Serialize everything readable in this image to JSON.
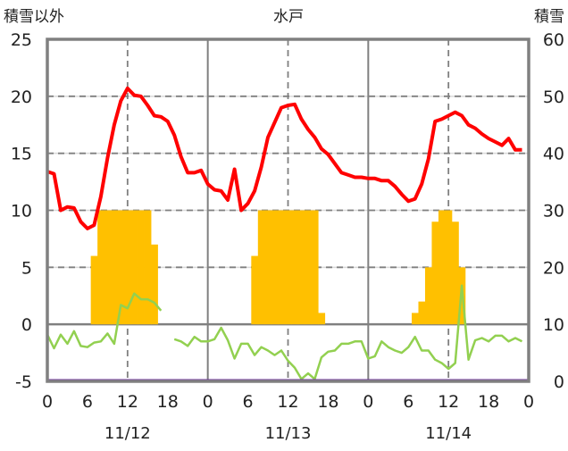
{
  "chart_data": {
    "type": "line",
    "title": "水戸",
    "left_axis_label": "積雪以外",
    "right_axis_label": "積雪",
    "left_ylim": [
      -5,
      25
    ],
    "left_ticks": [
      "25",
      "20",
      "15",
      "10",
      "5",
      "0",
      "-5"
    ],
    "left_tick_values": [
      25,
      20,
      15,
      10,
      5,
      0,
      -5
    ],
    "right_ylim": [
      0,
      60
    ],
    "right_ticks": [
      "60",
      "50",
      "40",
      "30",
      "20",
      "10",
      "0"
    ],
    "right_tick_values": [
      60,
      50,
      40,
      30,
      20,
      10,
      0
    ],
    "x_hours_range": [
      0,
      72
    ],
    "x_tick_labels": [
      "0",
      "6",
      "12",
      "18",
      "0",
      "6",
      "12",
      "18",
      "0",
      "6",
      "12",
      "18",
      "0"
    ],
    "x_tick_hours": [
      0,
      6,
      12,
      18,
      24,
      30,
      36,
      42,
      48,
      54,
      60,
      66,
      72
    ],
    "date_labels": [
      "11/12",
      "11/13",
      "11/14"
    ],
    "date_label_hours": [
      12,
      36,
      60
    ],
    "grid": true,
    "colors": {
      "red": "#ff0000",
      "green": "#92d050",
      "bar": "#ffc000",
      "purple": "#7030a0",
      "axis": "#808080"
    },
    "series": [
      {
        "name": "red-line",
        "axis": "left",
        "color": "#ff0000",
        "values": [
          13.4,
          13.2,
          10.0,
          10.3,
          10.2,
          9.0,
          8.4,
          8.7,
          11.2,
          14.6,
          17.5,
          19.6,
          20.7,
          20.1,
          20.0,
          19.2,
          18.3,
          18.2,
          17.8,
          16.6,
          14.7,
          13.3,
          13.3,
          13.5,
          12.3,
          11.8,
          11.7,
          10.9,
          13.6,
          10.0,
          10.6,
          11.7,
          13.8,
          16.4,
          17.7,
          19.0,
          19.2,
          19.3,
          18.0,
          17.1,
          16.4,
          15.4,
          14.9,
          14.1,
          13.3,
          13.1,
          12.9,
          12.9,
          12.8,
          12.8,
          12.6,
          12.6,
          12.1,
          11.4,
          10.8,
          11.0,
          12.3,
          14.5,
          17.8,
          18.0,
          18.3,
          18.6,
          18.3,
          17.5,
          17.2,
          16.7,
          16.3,
          16.0,
          15.7,
          16.3,
          15.3,
          15.3
        ]
      },
      {
        "name": "green-line",
        "axis": "left",
        "color": "#92d050",
        "values": [
          -0.9,
          -2.1,
          -0.9,
          -1.7,
          -0.6,
          -1.9,
          -2.0,
          -1.6,
          -1.5,
          -0.8,
          -1.7,
          1.7,
          1.4,
          2.7,
          2.2,
          2.2,
          1.9,
          1.2,
          null,
          -1.3,
          -1.5,
          -1.9,
          -1.1,
          -1.5,
          -1.5,
          -1.3,
          -0.3,
          -1.4,
          -3.0,
          -1.7,
          -1.7,
          -2.7,
          -2.0,
          -2.3,
          -2.7,
          -2.3,
          -3.2,
          -3.8,
          -4.8,
          -4.3,
          -4.8,
          -2.9,
          -2.4,
          -2.3,
          -1.7,
          -1.7,
          -1.5,
          -1.5,
          -3.0,
          -2.8,
          -1.5,
          -2.0,
          -2.3,
          -2.5,
          -2.0,
          -1.1,
          -2.3,
          -2.3,
          -3.1,
          -3.4,
          -3.9,
          -3.4,
          3.4,
          -3.1,
          -1.4,
          -1.2,
          -1.5,
          -1.0,
          -1.0,
          -1.5,
          -1.2,
          -1.5
        ]
      },
      {
        "name": "purple-line",
        "axis": "left",
        "color": "#7030a0",
        "values": [
          -5,
          -5
        ]
      }
    ],
    "bars": {
      "name": "snow-bars",
      "color": "#ffc000",
      "axis": "left",
      "base": 0,
      "hours": [
        7,
        8,
        9,
        10,
        11,
        12,
        13,
        14,
        15,
        16,
        31,
        32,
        33,
        34,
        35,
        36,
        37,
        38,
        39,
        40,
        41,
        55,
        56,
        57,
        58,
        59,
        60,
        61,
        62
      ],
      "values": [
        6,
        10,
        10,
        10,
        10,
        10,
        10,
        10,
        10,
        7,
        6,
        10,
        10,
        10,
        10,
        10,
        10,
        10,
        10,
        10,
        1,
        1,
        2,
        5,
        9,
        10,
        10,
        9,
        5
      ]
    }
  }
}
